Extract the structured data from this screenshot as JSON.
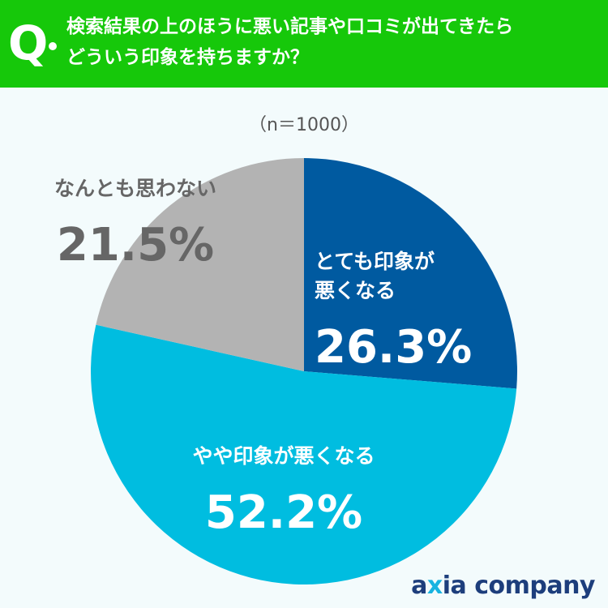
{
  "header": {
    "q_label": "Q",
    "question": "検索結果の上のほうに悪い記事や口コミが出てきたら\nどういう印象を持ちますか？"
  },
  "sample_note": "（n＝1000）",
  "chart_data": {
    "type": "pie",
    "title": "",
    "slices": [
      {
        "label": "とても印象が\n悪くなる",
        "value": 26.3,
        "display": "26.3%",
        "color": "#005aa0"
      },
      {
        "label": "やや印象が悪くなる",
        "value": 52.2,
        "display": "52.2%",
        "color": "#00bde0"
      },
      {
        "label": "なんとも思わない",
        "value": 21.5,
        "display": "21.5%",
        "color": "#b3b3b3"
      }
    ],
    "start": "12 o'clock",
    "direction": "clockwise"
  },
  "logo": {
    "prefix": "a",
    "x": "x",
    "rest": "ia company"
  }
}
